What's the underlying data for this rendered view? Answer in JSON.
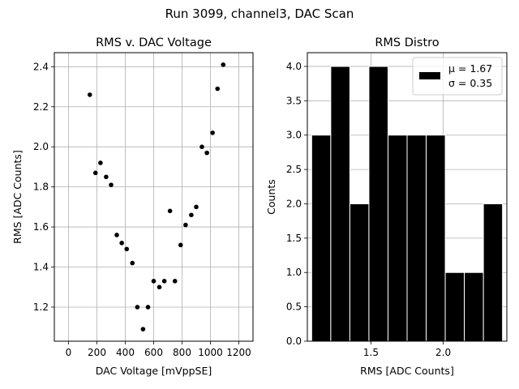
{
  "figure_title": "Run 3099, channel3, DAC Scan",
  "chart_data": [
    {
      "type": "scatter",
      "title": "RMS v. DAC Voltage",
      "xlabel": "DAC Voltage [mVppSE]",
      "ylabel": "RMS [ADC Counts]",
      "xlim": [
        -100,
        1300
      ],
      "ylim": [
        1.03,
        2.47
      ],
      "xticks": [
        0,
        200,
        400,
        600,
        800,
        1000,
        1200
      ],
      "xtick_labels": [
        "0",
        "200",
        "400",
        "600",
        "800",
        "1000",
        "1200"
      ],
      "yticks": [
        1.2,
        1.4,
        1.6,
        1.8,
        2.0,
        2.2,
        2.4
      ],
      "ytick_labels": [
        "1.2",
        "1.4",
        "1.6",
        "1.8",
        "2.0",
        "2.2",
        "2.4"
      ],
      "grid": true,
      "marker_color": "#000000",
      "points": [
        {
          "x": 150,
          "y": 2.26
        },
        {
          "x": 190,
          "y": 1.87
        },
        {
          "x": 225,
          "y": 1.92
        },
        {
          "x": 265,
          "y": 1.85
        },
        {
          "x": 300,
          "y": 1.81
        },
        {
          "x": 340,
          "y": 1.56
        },
        {
          "x": 375,
          "y": 1.52
        },
        {
          "x": 410,
          "y": 1.49
        },
        {
          "x": 450,
          "y": 1.42
        },
        {
          "x": 485,
          "y": 1.2
        },
        {
          "x": 525,
          "y": 1.09
        },
        {
          "x": 560,
          "y": 1.2
        },
        {
          "x": 600,
          "y": 1.33
        },
        {
          "x": 640,
          "y": 1.3
        },
        {
          "x": 675,
          "y": 1.33
        },
        {
          "x": 715,
          "y": 1.68
        },
        {
          "x": 750,
          "y": 1.33
        },
        {
          "x": 790,
          "y": 1.51
        },
        {
          "x": 825,
          "y": 1.61
        },
        {
          "x": 865,
          "y": 1.66
        },
        {
          "x": 900,
          "y": 1.7
        },
        {
          "x": 940,
          "y": 2.0
        },
        {
          "x": 975,
          "y": 1.97
        },
        {
          "x": 1015,
          "y": 2.07
        },
        {
          "x": 1050,
          "y": 2.29
        },
        {
          "x": 1090,
          "y": 2.41
        }
      ]
    },
    {
      "type": "bar",
      "title": "RMS Distro",
      "xlabel": "RMS [ADC Counts]",
      "ylabel": "Counts",
      "xlim": [
        1.06,
        2.44
      ],
      "ylim": [
        0,
        4.2
      ],
      "xticks": [
        1.5,
        2.0
      ],
      "xtick_labels": [
        "1.5",
        "2.0"
      ],
      "yticks": [
        0,
        0.5,
        1.0,
        1.5,
        2.0,
        2.5,
        3.0,
        3.5,
        4.0
      ],
      "ytick_labels": [
        "0.0",
        "0.5",
        "1.0",
        "1.5",
        "2.0",
        "2.5",
        "3.0",
        "3.5",
        "4.0"
      ],
      "grid": true,
      "bar_color": "#000000",
      "bin_edges": [
        1.09,
        1.222,
        1.354,
        1.486,
        1.618,
        1.75,
        1.882,
        2.014,
        2.146,
        2.278,
        2.41
      ],
      "values": [
        3,
        4,
        2,
        4,
        3,
        3,
        3,
        1,
        1,
        2
      ],
      "legend": {
        "position": "upper right",
        "entries": [
          "μ = 1.67",
          "σ = 0.35"
        ]
      }
    }
  ]
}
